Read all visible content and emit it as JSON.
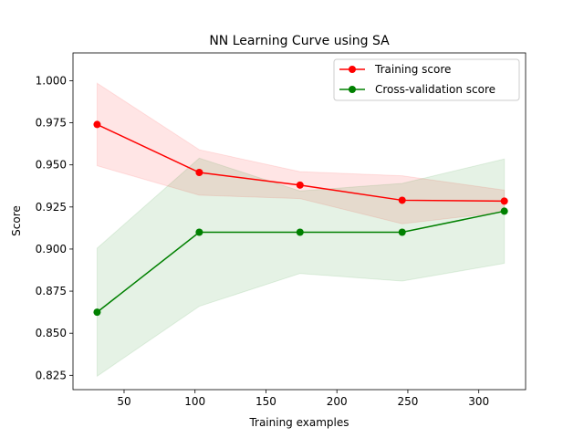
{
  "chart_data": {
    "type": "line",
    "title": "NN Learning Curve using SA",
    "xlabel": "Training examples",
    "ylabel": "Score",
    "xlim": [
      14,
      333
    ],
    "ylim": [
      0.8165,
      1.0165
    ],
    "x_ticks": [
      50,
      100,
      150,
      200,
      250,
      300
    ],
    "y_ticks": [
      0.825,
      0.85,
      0.875,
      0.9,
      0.925,
      0.95,
      0.975,
      1.0
    ],
    "x_tick_labels": [
      "50",
      "100",
      "150",
      "200",
      "250",
      "300"
    ],
    "y_tick_labels": [
      "0.825",
      "0.850",
      "0.875",
      "0.900",
      "0.925",
      "0.950",
      "0.975",
      "1.000"
    ],
    "grid": false,
    "legend_position": "top-right",
    "x": [
      31,
      103,
      174,
      246,
      318
    ],
    "series": [
      {
        "name": "Training score",
        "color": "#ff0000",
        "band_color": "#ff0000",
        "values": [
          0.974,
          0.9455,
          0.938,
          0.929,
          0.9285
        ],
        "upper": [
          0.9985,
          0.959,
          0.946,
          0.9435,
          0.935
        ],
        "lower": [
          0.9495,
          0.932,
          0.93,
          0.915,
          0.922
        ]
      },
      {
        "name": "Cross-validation score",
        "color": "#008000",
        "band_color": "#008000",
        "values": [
          0.8625,
          0.91,
          0.91,
          0.91,
          0.9225
        ],
        "upper": [
          0.9005,
          0.954,
          0.9345,
          0.939,
          0.9535
        ],
        "lower": [
          0.8245,
          0.866,
          0.8855,
          0.881,
          0.8915
        ]
      }
    ]
  }
}
